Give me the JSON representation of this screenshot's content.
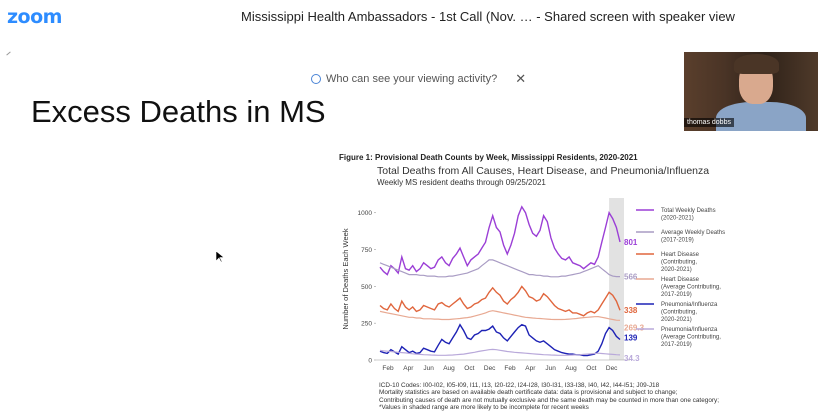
{
  "app": {
    "logo": "zoom",
    "title": "Mississippi Health Ambassadors - 1st Call (Nov. …     - Shared screen with speaker view"
  },
  "privacy": {
    "text": "Who can see your viewing activity?"
  },
  "slide": {
    "title": "Excess Deaths in MS",
    "figure_caption": "Figure 1: Provisional Death Counts by Week, Mississippi Residents, 2020-2021",
    "chart_title": "Total Deaths from All Causes, Heart Disease, and Pneumonia/Influenza",
    "chart_subtitle": "Weekly MS resident deaths through 09/25/2021",
    "notes": [
      "ICD-10 Codes: I00-I02, I05-I09, I11, I13, I20-I22, I24-I28, I30-I31, I33-I38, I40, I42, I44-I51; J09-J18",
      "Mortality statistics are based on available death certificate data: data is provisional and subject to change;",
      "Contributing causes of death are not mutually exclusive and the same death may be counted in more than one category;",
      "*Values in shaded range are more likely to be incomplete for recent weeks"
    ]
  },
  "video": {
    "participant_name": "thomas dobbs"
  },
  "chart_data": {
    "type": "line",
    "ylabel": "Number of Deaths Each Week",
    "ylim": [
      0,
      1100
    ],
    "yticks": [
      "0",
      "250",
      "500",
      "750",
      "1000"
    ],
    "xticks": [
      "Feb",
      "Apr",
      "Jun",
      "Aug",
      "Oct",
      "Dec",
      "Feb",
      "Apr",
      "Jun",
      "Aug",
      "Oct",
      "Dec"
    ],
    "shaded_range": "last 4 weeks",
    "series": [
      {
        "name": "Total Weekly Deaths (2020-2021)",
        "legend": [
          "Total Weekly Deaths",
          "(2020-2021)"
        ],
        "color": "#9b3fd6",
        "end_label": "801",
        "values": [
          630,
          600,
          580,
          640,
          620,
          590,
          700,
          620,
          610,
          640,
          600,
          620,
          660,
          640,
          620,
          630,
          680,
          700,
          660,
          640,
          690,
          720,
          760,
          700,
          640,
          680,
          700,
          720,
          760,
          800,
          900,
          980,
          900,
          870,
          780,
          720,
          780,
          860,
          980,
          1040,
          1000,
          920,
          860,
          840,
          880,
          980,
          940,
          830,
          760,
          720,
          690,
          680,
          700,
          660,
          650,
          640,
          620,
          640,
          660,
          650,
          700,
          800,
          900,
          1000,
          960,
          900,
          801
        ]
      },
      {
        "name": "Average Weekly Deaths (2017-2019)",
        "legend": [
          "Average Weekly Deaths",
          "(2017-2019)"
        ],
        "color": "#a99cc4",
        "end_label": "566",
        "values": [
          660,
          650,
          640,
          630,
          620,
          610,
          600,
          590,
          580,
          580,
          580,
          575,
          575,
          570,
          570,
          570,
          565,
          565,
          565,
          570,
          570,
          575,
          580,
          585,
          590,
          600,
          610,
          620,
          640,
          660,
          680,
          680,
          670,
          660,
          650,
          640,
          630,
          620,
          610,
          600,
          590,
          580,
          580,
          575,
          575,
          570,
          570,
          565,
          565,
          565,
          570,
          570,
          575,
          580,
          585,
          590,
          600,
          610,
          620,
          630,
          640,
          620,
          600,
          580,
          570,
          566,
          566
        ]
      },
      {
        "name": "Heart Disease (Contributing, 2020-2021)",
        "legend": [
          "Heart Disease",
          "(Contributing,",
          "2020-2021)"
        ],
        "color": "#e0663d",
        "end_label": "338",
        "values": [
          370,
          350,
          340,
          380,
          350,
          330,
          400,
          360,
          340,
          360,
          330,
          340,
          370,
          360,
          350,
          340,
          380,
          390,
          370,
          360,
          380,
          400,
          420,
          380,
          350,
          360,
          380,
          390,
          410,
          420,
          460,
          490,
          460,
          440,
          400,
          380,
          410,
          430,
          460,
          500,
          470,
          430,
          420,
          400,
          410,
          450,
          430,
          400,
          370,
          350,
          340,
          330,
          340,
          320,
          320,
          310,
          300,
          320,
          330,
          320,
          340,
          380,
          420,
          460,
          440,
          400,
          338
        ]
      },
      {
        "name": "Heart Disease (Average Contributing, 2017-2019)",
        "legend": [
          "Heart Disease",
          "(Average Contributing,",
          "2017-2019)"
        ],
        "color": "#e8a992",
        "end_label": "269.3",
        "values": [
          330,
          325,
          320,
          315,
          310,
          305,
          300,
          295,
          290,
          290,
          285,
          285,
          280,
          280,
          280,
          278,
          278,
          275,
          275,
          275,
          278,
          280,
          282,
          285,
          288,
          292,
          298,
          305,
          312,
          320,
          330,
          335,
          330,
          325,
          320,
          315,
          310,
          305,
          300,
          295,
          290,
          288,
          285,
          283,
          282,
          280,
          278,
          276,
          275,
          275,
          275,
          276,
          278,
          280,
          282,
          285,
          288,
          290,
          292,
          294,
          295,
          290,
          285,
          280,
          275,
          270,
          269.3
        ]
      },
      {
        "name": "Pneumonia/Influenza (Contributing, 2020-2021)",
        "legend": [
          "Pneumonia/Influenza",
          "(Contributing,",
          "2020-2021)"
        ],
        "color": "#1d22b5",
        "end_label": "139",
        "values": [
          60,
          50,
          45,
          70,
          55,
          40,
          90,
          70,
          50,
          60,
          45,
          50,
          80,
          70,
          60,
          55,
          100,
          140,
          120,
          110,
          150,
          190,
          240,
          200,
          150,
          140,
          170,
          180,
          200,
          200,
          210,
          230,
          190,
          180,
          150,
          130,
          160,
          190,
          220,
          240,
          230,
          170,
          150,
          130,
          120,
          130,
          110,
          90,
          70,
          60,
          50,
          45,
          40,
          40,
          35,
          35,
          30,
          30,
          35,
          40,
          60,
          110,
          180,
          220,
          200,
          160,
          139
        ]
      },
      {
        "name": "Pneumonia/Influenza (Average Contributing, 2017-2019)",
        "legend": [
          "Pneumonia/Influenza",
          "(Average Contributing,",
          "2017-2019)"
        ],
        "color": "#b9a9da",
        "end_label": "34.3",
        "values": [
          65,
          62,
          60,
          58,
          55,
          52,
          50,
          48,
          45,
          42,
          40,
          38,
          36,
          35,
          34,
          33,
          32,
          32,
          32,
          33,
          34,
          36,
          38,
          40,
          44,
          48,
          52,
          58,
          62,
          66,
          70,
          72,
          70,
          66,
          62,
          58,
          55,
          52,
          50,
          48,
          46,
          44,
          42,
          40,
          38,
          36,
          35,
          34,
          33,
          32,
          32,
          32,
          33,
          34,
          35,
          36,
          38,
          40,
          42,
          44,
          46,
          44,
          42,
          40,
          38,
          36,
          34.3
        ]
      }
    ]
  }
}
